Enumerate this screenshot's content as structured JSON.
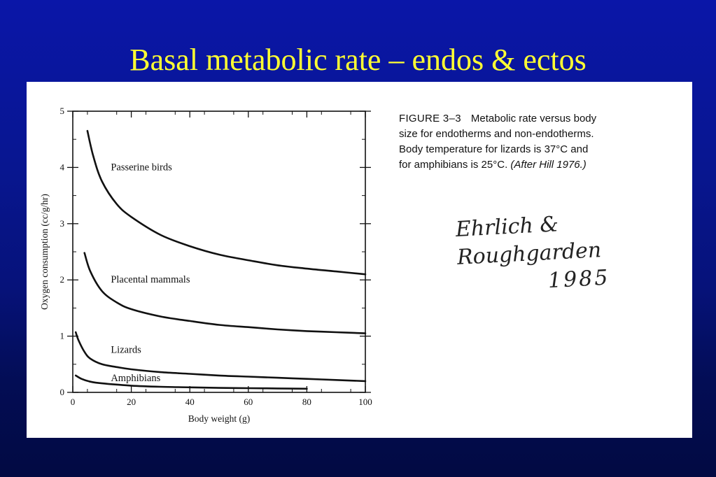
{
  "slide": {
    "title": "Basal metabolic rate – endos & ectos"
  },
  "caption": {
    "figure_number": "FIGURE 3–3",
    "line1_text": "Metabolic rate versus body",
    "line2": "size for endotherms and non-endotherms.",
    "line3": "Body temperature for lizards is 37°C and",
    "line4_text": "for amphibians is 25°C.",
    "line4_italic": "(After Hill 1976.)"
  },
  "handwriting": {
    "names": "Ehrlich & Roughgarden",
    "year": "1985"
  },
  "colors": {
    "background_top": "#0a16a8",
    "background_bottom": "#020a42",
    "title": "#ffff33",
    "curve": "#111111",
    "panel": "#ffffff"
  },
  "chart_data": {
    "type": "line",
    "xlabel": "Body weight (g)",
    "ylabel": "Oxygen consumption (cc/g/hr)",
    "xlim": [
      0,
      100
    ],
    "ylim": [
      0,
      5
    ],
    "xticks": [
      0,
      20,
      40,
      60,
      80,
      100
    ],
    "yticks": [
      0,
      1,
      2,
      3,
      4,
      5
    ],
    "grid": false,
    "series": [
      {
        "name": "Passerine birds",
        "x": [
          5,
          7,
          10,
          15,
          20,
          30,
          40,
          50,
          60,
          70,
          80,
          90,
          100
        ],
        "y": [
          4.65,
          4.2,
          3.75,
          3.35,
          3.12,
          2.8,
          2.6,
          2.45,
          2.35,
          2.26,
          2.2,
          2.15,
          2.1
        ]
      },
      {
        "name": "Placental mammals",
        "x": [
          4,
          6,
          10,
          15,
          20,
          30,
          40,
          50,
          60,
          70,
          80,
          90,
          100
        ],
        "y": [
          2.48,
          2.15,
          1.8,
          1.6,
          1.48,
          1.35,
          1.27,
          1.2,
          1.16,
          1.12,
          1.09,
          1.07,
          1.05
        ]
      },
      {
        "name": "Lizards",
        "x": [
          1,
          2,
          4,
          6,
          10,
          15,
          20,
          30,
          40,
          50,
          60,
          70,
          80,
          90,
          100
        ],
        "y": [
          1.07,
          0.92,
          0.72,
          0.6,
          0.5,
          0.45,
          0.41,
          0.36,
          0.33,
          0.3,
          0.28,
          0.26,
          0.24,
          0.22,
          0.2
        ]
      },
      {
        "name": "Amphibians",
        "x": [
          1,
          3,
          6,
          10,
          20,
          30,
          40,
          50,
          60,
          70,
          80
        ],
        "y": [
          0.3,
          0.24,
          0.19,
          0.16,
          0.12,
          0.1,
          0.09,
          0.08,
          0.075,
          0.07,
          0.065
        ]
      }
    ]
  }
}
